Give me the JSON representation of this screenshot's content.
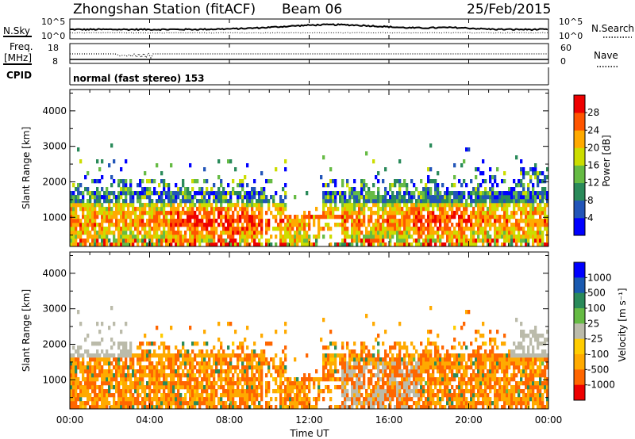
{
  "header": {
    "station": "Zhongshan Station (fitACF)",
    "beam": "Beam 06",
    "date": "25/Feb/2015"
  },
  "summary": {
    "nsky_label": "N.Sky",
    "nsearch_label": "N.Search",
    "nsky_ticks": [
      "10^5",
      "10^0"
    ],
    "freq_label_1": "Freq.",
    "freq_label_2": "[MHz]",
    "freq_ticks": [
      "18",
      "8"
    ],
    "nave_label": "Nave",
    "nave_ticks": [
      "60",
      "0"
    ],
    "cpid_label": "CPID",
    "cpid_value": "normal (fast stereo) 153"
  },
  "chart_data": [
    {
      "type": "heatmap",
      "name": "power",
      "ylabel": "Slant Range [km]",
      "ylim": [
        180,
        4600
      ],
      "yticks": [
        1000,
        2000,
        3000,
        4000
      ],
      "xlim": [
        0,
        24
      ],
      "colorbar": {
        "label": "Power [dB]",
        "range": [
          0,
          32
        ],
        "ticks": [
          "28",
          "24",
          "20",
          "16",
          "12",
          "8",
          "4"
        ],
        "colors": [
          "#0000ff",
          "#2255b8",
          "#2a8a5a",
          "#66bb44",
          "#ccdd00",
          "#ffaa00",
          "#ff5500",
          "#ee0000"
        ]
      }
    },
    {
      "type": "heatmap",
      "name": "velocity",
      "ylabel": "Slant Range [km]",
      "ylim": [
        180,
        4600
      ],
      "yticks": [
        1000,
        2000,
        3000,
        4000
      ],
      "xlim": [
        0,
        24
      ],
      "xlabel": "Time UT",
      "xticks": [
        "00:00",
        "04:00",
        "08:00",
        "12:00",
        "16:00",
        "20:00",
        "00:00"
      ],
      "colorbar": {
        "label": "Velocity [m s⁻¹]",
        "ticks": [
          "1000",
          "500",
          "100",
          "25",
          "-25",
          "-100",
          "-500",
          "-1000"
        ],
        "colors": [
          "#0000ff",
          "#1a5ab0",
          "#2a8a5a",
          "#66bb44",
          "#bbbbaa",
          "#ffcc00",
          "#ffaa00",
          "#ff6600",
          "#ee0000"
        ]
      }
    }
  ]
}
